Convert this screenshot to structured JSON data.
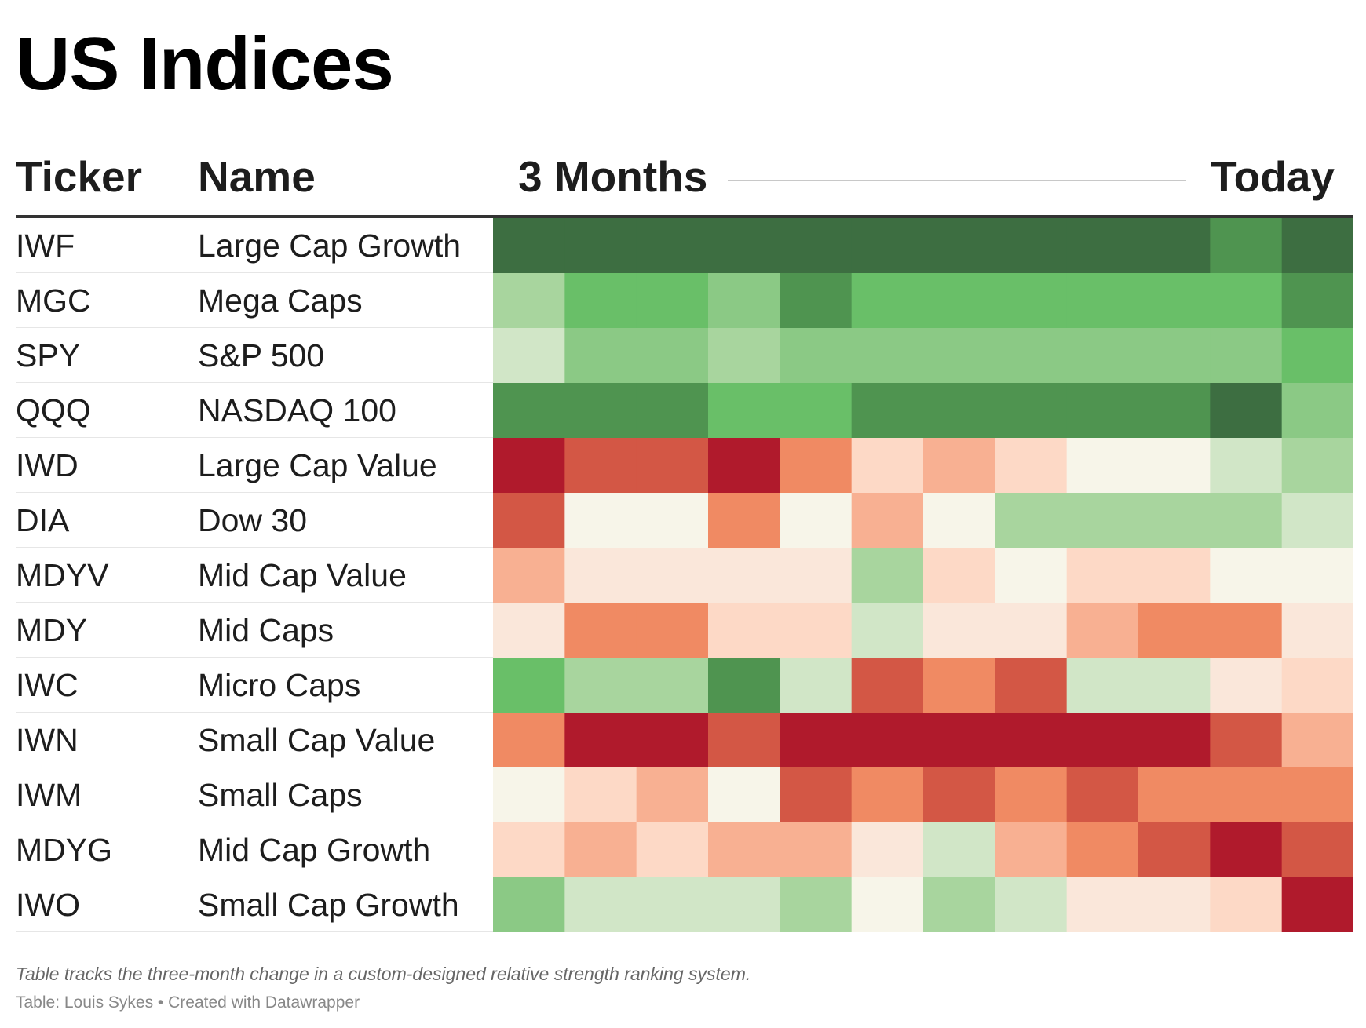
{
  "title": "US Indices",
  "headers": {
    "ticker": "Ticker",
    "name": "Name",
    "start": "3 Months",
    "end": "Today"
  },
  "chart_data": {
    "type": "heatmap",
    "title": "US Indices",
    "color_scale": {
      "-4": "#b01a2c",
      "-3": "#d35745",
      "-2": "#f08a63",
      "-1": "#f8b092",
      "0": "#fdd9c6",
      "1": "#fae7da",
      "2": "#f7f5e9",
      "3": "#d1e6c7",
      "4": "#a8d59e",
      "5": "#8bc985",
      "6": "#69bf68",
      "7": "#4f9450",
      "8": "#3d6e41"
    },
    "rows": [
      {
        "ticker": "IWF",
        "name": "Large Cap Growth",
        "values": [
          8,
          8,
          8,
          8,
          8,
          8,
          8,
          8,
          8,
          8,
          7,
          8
        ]
      },
      {
        "ticker": "MGC",
        "name": "Mega Caps",
        "values": [
          4,
          6,
          6,
          5,
          7,
          6,
          6,
          6,
          6,
          6,
          6,
          7
        ]
      },
      {
        "ticker": "SPY",
        "name": "S&P 500",
        "values": [
          3,
          5,
          5,
          4,
          5,
          5,
          5,
          5,
          5,
          5,
          5,
          6
        ]
      },
      {
        "ticker": "QQQ",
        "name": "NASDAQ 100",
        "values": [
          7,
          7,
          7,
          6,
          6,
          7,
          7,
          7,
          7,
          7,
          8,
          5
        ]
      },
      {
        "ticker": "IWD",
        "name": "Large Cap Value",
        "values": [
          -4,
          -3,
          -3,
          -4,
          -2,
          0,
          -1,
          0,
          2,
          2,
          3,
          4
        ]
      },
      {
        "ticker": "DIA",
        "name": "Dow 30",
        "values": [
          -3,
          2,
          2,
          -2,
          2,
          -1,
          2,
          4,
          4,
          4,
          4,
          3
        ]
      },
      {
        "ticker": "MDYV",
        "name": "Mid Cap Value",
        "values": [
          -1,
          1,
          1,
          1,
          1,
          4,
          0,
          2,
          0,
          0,
          2,
          2
        ]
      },
      {
        "ticker": "MDY",
        "name": "Mid Caps",
        "values": [
          1,
          -2,
          -2,
          0,
          0,
          3,
          1,
          1,
          -1,
          -2,
          -2,
          1
        ]
      },
      {
        "ticker": "IWC",
        "name": "Micro Caps",
        "values": [
          6,
          4,
          4,
          7,
          3,
          -3,
          -2,
          -3,
          3,
          3,
          1,
          0
        ]
      },
      {
        "ticker": "IWN",
        "name": "Small Cap Value",
        "values": [
          -2,
          -4,
          -4,
          -3,
          -4,
          -4,
          -4,
          -4,
          -4,
          -4,
          -3,
          -1
        ]
      },
      {
        "ticker": "IWM",
        "name": "Small Caps",
        "values": [
          2,
          0,
          -1,
          2,
          -3,
          -2,
          -3,
          -2,
          -3,
          -2,
          -2,
          -2
        ]
      },
      {
        "ticker": "MDYG",
        "name": "Mid Cap Growth",
        "values": [
          0,
          -1,
          0,
          -1,
          -1,
          1,
          3,
          -1,
          -2,
          -3,
          -4,
          -3
        ]
      },
      {
        "ticker": "IWO",
        "name": "Small Cap Growth",
        "values": [
          5,
          3,
          3,
          3,
          4,
          2,
          4,
          3,
          1,
          1,
          0,
          -4
        ]
      }
    ]
  },
  "notes": "Table tracks the three-month change in a custom-designed relative strength ranking system.",
  "source": "Table: Louis Sykes • Created with Datawrapper"
}
